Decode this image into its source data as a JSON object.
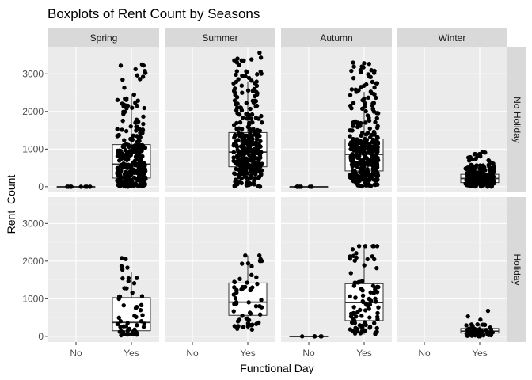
{
  "chart_data": {
    "type": "boxplot",
    "title": "Boxplots of Rent Count by Seasons",
    "xlabel": "Functional Day",
    "ylabel": "Rent_Count",
    "x_categories": [
      "No",
      "Yes"
    ],
    "column_facets": [
      "Spring",
      "Summer",
      "Autumn",
      "Winter"
    ],
    "row_facets": [
      "No Holiday",
      "Holiday"
    ],
    "ylim": [
      -150,
      3700
    ],
    "yticks": [
      0,
      1000,
      2000,
      3000
    ],
    "grid": true,
    "legend": "none",
    "panels": [
      {
        "row": "No Holiday",
        "column": "Spring",
        "boxes": [
          {
            "x": "No",
            "min": 0,
            "q1": 0,
            "median": 0,
            "q3": 0,
            "max": 0,
            "outlier_max": 0,
            "n_points": 8
          },
          {
            "x": "Yes",
            "min": 0,
            "q1": 230,
            "median": 600,
            "q3": 1120,
            "max": 2450,
            "outlier_max": 3250,
            "n_points": 320
          }
        ]
      },
      {
        "row": "No Holiday",
        "column": "Summer",
        "boxes": [
          {
            "x": "Yes",
            "min": 0,
            "q1": 530,
            "median": 920,
            "q3": 1440,
            "max": 2800,
            "outlier_max": 3560,
            "n_points": 340
          }
        ]
      },
      {
        "row": "No Holiday",
        "column": "Autumn",
        "boxes": [
          {
            "x": "No",
            "min": 0,
            "q1": 0,
            "median": 0,
            "q3": 0,
            "max": 0,
            "outlier_max": 0,
            "n_points": 8
          },
          {
            "x": "Yes",
            "min": 0,
            "q1": 420,
            "median": 860,
            "q3": 1270,
            "max": 2520,
            "outlier_max": 3300,
            "n_points": 320
          }
        ]
      },
      {
        "row": "No Holiday",
        "column": "Winter",
        "boxes": [
          {
            "x": "Yes",
            "min": 0,
            "q1": 110,
            "median": 220,
            "q3": 330,
            "max": 580,
            "outlier_max": 930,
            "n_points": 230
          }
        ]
      },
      {
        "row": "Holiday",
        "column": "Spring",
        "boxes": [
          {
            "x": "Yes",
            "min": 0,
            "q1": 150,
            "median": 370,
            "q3": 1030,
            "max": 1700,
            "outlier_max": 2080,
            "n_points": 55
          }
        ]
      },
      {
        "row": "Holiday",
        "column": "Summer",
        "boxes": [
          {
            "x": "Yes",
            "min": 180,
            "q1": 560,
            "median": 910,
            "q3": 1420,
            "max": 2150,
            "outlier_max": 2150,
            "n_points": 55
          }
        ]
      },
      {
        "row": "Holiday",
        "column": "Autumn",
        "boxes": [
          {
            "x": "No",
            "min": 0,
            "q1": 0,
            "median": 0,
            "q3": 0,
            "max": 0,
            "outlier_max": 0,
            "n_points": 5
          },
          {
            "x": "Yes",
            "min": 50,
            "q1": 420,
            "median": 900,
            "q3": 1400,
            "max": 2400,
            "outlier_max": 2400,
            "n_points": 90
          }
        ]
      },
      {
        "row": "Holiday",
        "column": "Winter",
        "boxes": [
          {
            "x": "Yes",
            "min": 0,
            "q1": 90,
            "median": 140,
            "q3": 210,
            "max": 340,
            "outlier_max": 680,
            "n_points": 60
          }
        ]
      }
    ]
  },
  "colors": {
    "panel_background": "#ebebeb",
    "grid_major": "#ffffff",
    "grid_minor": "#f2f2f2",
    "strip_background": "#d9d9d9",
    "points": "#000000",
    "box_fill": "#ffffff",
    "box_line": "#333333"
  }
}
